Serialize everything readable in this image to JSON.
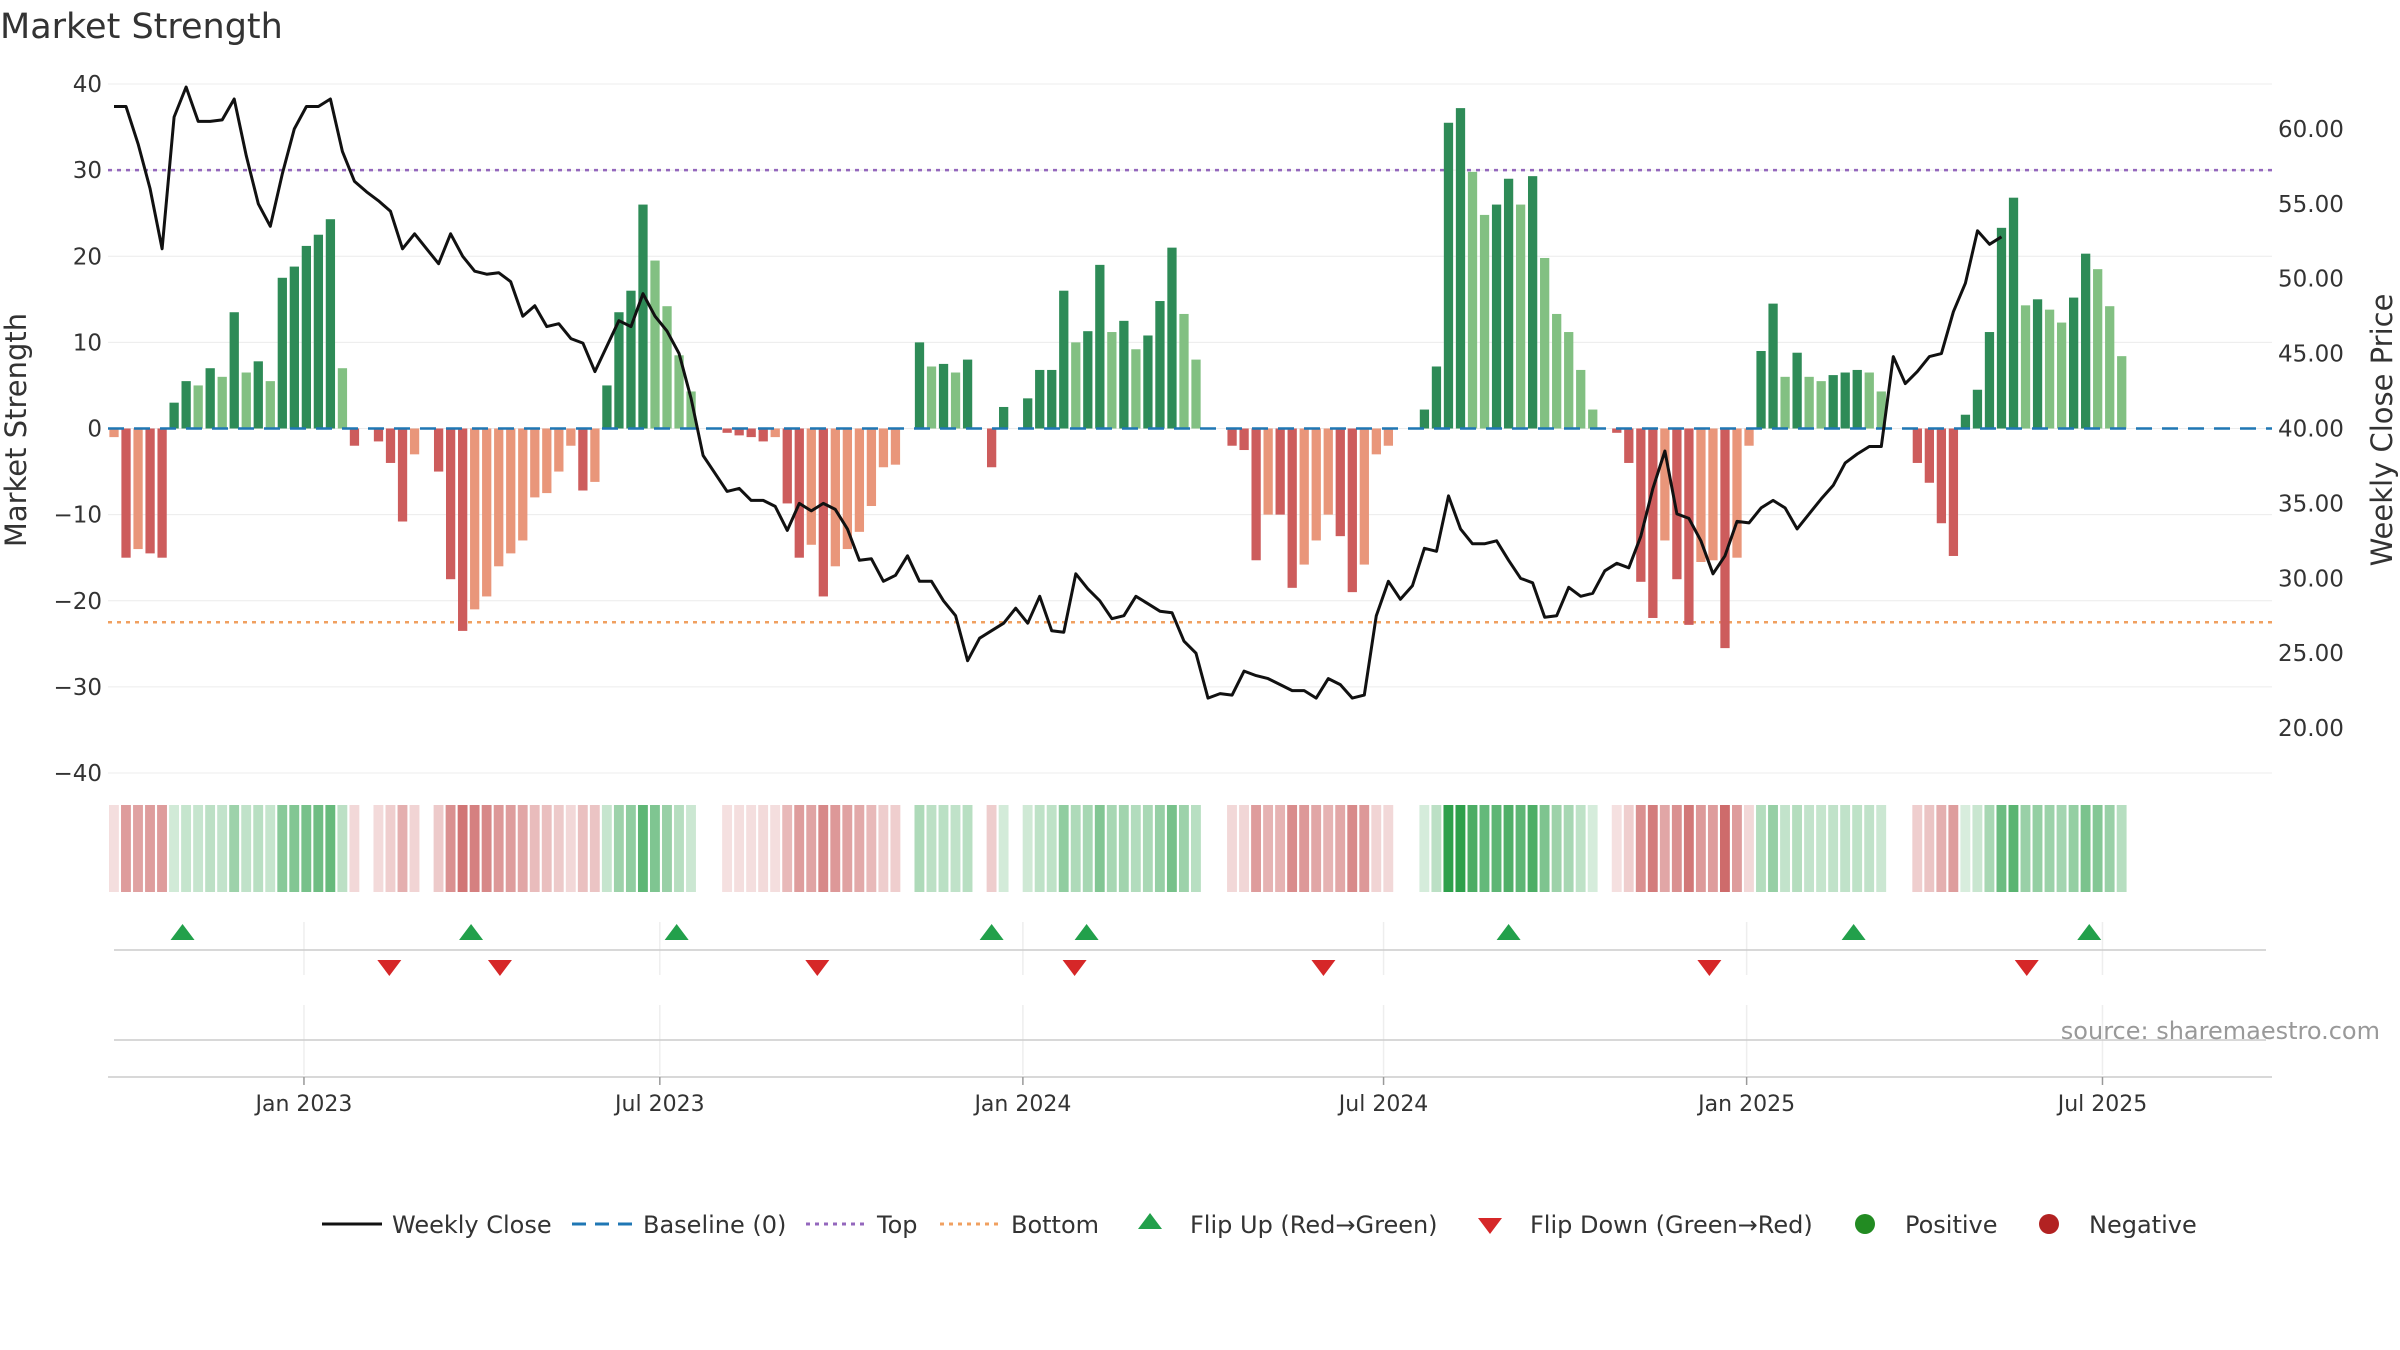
{
  "chart_data": {
    "type": "bar+line",
    "title": "Market Strength",
    "ylabel_left": "Market Strength",
    "ylabel_right": "Weekly Close Price",
    "ylim_left": [
      -40,
      40
    ],
    "ylim_right": [
      17,
      63
    ],
    "left_ticks": [
      "40",
      "30",
      "20",
      "10",
      "0",
      "−10",
      "−20",
      "−30",
      "−40"
    ],
    "left_tick_values": [
      40,
      30,
      20,
      10,
      0,
      -10,
      -20,
      -30,
      -40
    ],
    "right_ticks": [
      "60.00",
      "55.00",
      "50.00",
      "45.00",
      "40.00",
      "35.00",
      "30.00",
      "25.00",
      "20.00"
    ],
    "right_tick_values": [
      60,
      55,
      50,
      45,
      40,
      35,
      30,
      25,
      20
    ],
    "x_range_weeks": [
      0,
      180
    ],
    "x_labels": [
      "Jan 2023",
      "Jul 2023",
      "Jan 2024",
      "Jul 2024",
      "Jan 2025",
      "Jul 2025"
    ],
    "x_label_weeks": [
      16.3,
      45.9,
      76.1,
      106.1,
      136.3,
      165.9
    ],
    "top_level": 30,
    "bottom_level": -22.5,
    "baseline": 0,
    "strength": [
      -1,
      -15,
      -14,
      -14.5,
      -15,
      3,
      5.5,
      5,
      7,
      6,
      13.5,
      6.5,
      7.8,
      5.5,
      17.5,
      18.8,
      21.2,
      22.5,
      24.3,
      7,
      -2,
      0,
      -1.5,
      -4,
      -10.8,
      -3,
      0,
      -5,
      -17.5,
      -23.5,
      -21,
      -19.5,
      -16,
      -14.5,
      -13,
      -8,
      -7.5,
      -5,
      -2,
      -7.2,
      -6.2,
      5,
      13.5,
      16,
      26,
      19.5,
      14.2,
      8.5,
      4.3,
      0,
      0,
      -0.5,
      -0.8,
      -1,
      -1.5,
      -1,
      -8.7,
      -15,
      -13.5,
      -19.5,
      -16,
      -14,
      -12,
      -9,
      -4.5,
      -4.2,
      0,
      10,
      7.2,
      7.5,
      6.5,
      8,
      0,
      -4.5,
      2.5,
      0,
      3.5,
      6.8,
      6.8,
      16,
      10,
      11.3,
      19,
      11.2,
      12.5,
      9.2,
      10.8,
      14.8,
      21,
      13.3,
      8,
      0,
      0,
      -2,
      -2.5,
      -15.3,
      -10,
      -10,
      -18.5,
      -15.8,
      -13,
      -10,
      -12.5,
      -19,
      -15.8,
      -3,
      -2,
      0,
      0,
      2.2,
      7.2,
      35.5,
      37.2,
      29.8,
      24.8,
      26,
      29,
      26,
      29.3,
      19.8,
      13.3,
      11.2,
      6.8,
      2.2,
      0,
      -0.5,
      -4,
      -17.8,
      -22,
      -13,
      -17.5,
      -22.8,
      -15.5,
      -15.3,
      -25.5,
      -15,
      -2,
      9,
      14.5,
      6,
      8.8,
      6,
      5.5,
      6.2,
      6.5,
      6.8,
      6.5,
      4.3,
      0,
      0,
      -4,
      -6.3,
      -11,
      -14.8,
      1.6,
      4.5,
      11.2,
      23.3,
      26.8,
      14.3,
      15,
      13.8,
      12.3,
      15.2,
      20.3,
      18.5,
      14.2,
      8.4
    ],
    "weekly_close": [
      61.5,
      61.5,
      59,
      56,
      52,
      60.8,
      62.8,
      60.5,
      60.5,
      60.6,
      62,
      58.2,
      55,
      53.5,
      57,
      60,
      61.5,
      61.5,
      62,
      58.5,
      56.5,
      55.8,
      55.2,
      54.5,
      52,
      53,
      52,
      51,
      53,
      51.5,
      50.5,
      50.3,
      50.4,
      49.8,
      47.5,
      48.2,
      46.8,
      47,
      46,
      45.7,
      43.8,
      45.5,
      47.2,
      46.8,
      49,
      47.5,
      46.5,
      45,
      42,
      38.2,
      37,
      35.8,
      36,
      35.2,
      35.2,
      34.8,
      33.2,
      35,
      34.5,
      35,
      34.6,
      33.3,
      31.2,
      31.3,
      29.8,
      30.2,
      31.5,
      29.8,
      29.8,
      28.5,
      27.5,
      24.5,
      26,
      26.5,
      27,
      28,
      27,
      28.8,
      26.5,
      26.4,
      30.3,
      29.3,
      28.5,
      27.3,
      27.5,
      28.8,
      28.3,
      27.8,
      27.7,
      25.8,
      25,
      22,
      22.3,
      22.2,
      23.8,
      23.5,
      23.3,
      22.9,
      22.5,
      22.5,
      22,
      23.3,
      22.9,
      22,
      22.2,
      27.5,
      29.8,
      28.6,
      29.5,
      32,
      31.8,
      35.5,
      33.3,
      32.3,
      32.3,
      32.5,
      31.2,
      30,
      29.7,
      27.4,
      27.5,
      29.4,
      28.8,
      29,
      30.5,
      31,
      30.7,
      32.8,
      36,
      38.5,
      34.3,
      34,
      32.5,
      30.3,
      31.5,
      33.8,
      33.7,
      34.7,
      35.2,
      34.7,
      33.3,
      34.3,
      35.3,
      36.2,
      37.7,
      38.3,
      38.8,
      38.8,
      44.8,
      43,
      43.8,
      44.8,
      45,
      47.8,
      49.7,
      53.2,
      52.3,
      52.8
    ],
    "flip_up_weeks": [
      6.2,
      30.2,
      47.3,
      73.5,
      81.4,
      116.5,
      145.2,
      164.8
    ],
    "flip_down_weeks": [
      23.4,
      32.6,
      59.0,
      80.4,
      101.1,
      133.2,
      159.6
    ],
    "legend": [
      "Weekly Close",
      "Baseline (0)",
      "Top",
      "Bottom",
      "Flip Up (Red→Green)",
      "Flip Down (Green→Red)",
      "Positive",
      "Negative"
    ],
    "source": "source: sharemaestro.com",
    "colors": {
      "bar_green_dark": "#2e8b57",
      "bar_green_light": "#82c082",
      "bar_red_dark": "#cd5c5c",
      "bar_red_light": "#e9967a",
      "line": "#111111",
      "baseline": "#1f77b4",
      "top": "#9467bd",
      "bottom": "#f0a060",
      "flip_up": "#22a04b",
      "flip_down": "#d62728",
      "positive": "#228b22",
      "negative": "#b22222"
    }
  }
}
